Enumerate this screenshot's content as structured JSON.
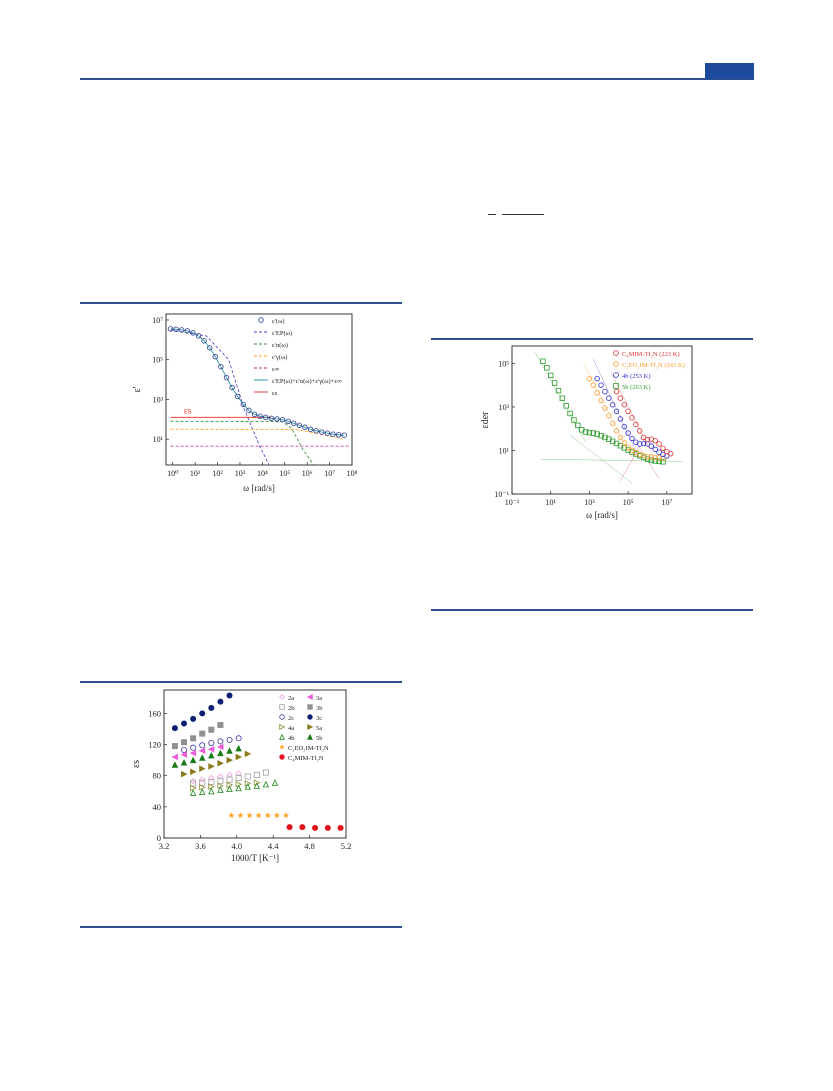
{
  "header": {
    "accent_color": "#1d4a9a"
  },
  "figure_a": {
    "chart_data": {
      "type": "line",
      "title": "",
      "xlabel": "ω [rad/s]",
      "ylabel": "ε'",
      "x_scale": "log",
      "y_scale": "log",
      "xlim_exp": [
        -0.3,
        8
      ],
      "ylim_exp": [
        -0.3,
        7.3
      ],
      "x_ticks": [
        "10⁰",
        "10¹",
        "10²",
        "10³",
        "10⁴",
        "10⁵",
        "10⁶",
        "10⁷",
        "10⁸"
      ],
      "y_ticks": [
        "10¹",
        "10³",
        "10⁵",
        "10⁷"
      ],
      "annotation": "εs",
      "legend": [
        {
          "label": "ε'(ω)",
          "color": "#2b3a8c",
          "style": "circle"
        },
        {
          "label": "ε'EP(ω)",
          "color": "#3b3bd6",
          "style": "dash"
        },
        {
          "label": "ε'α(ω)",
          "color": "#2f8a2f",
          "style": "dash"
        },
        {
          "label": "ε'γ(ω)",
          "color": "#ff9b1a",
          "style": "dash"
        },
        {
          "label": "ε∞",
          "color": "#c21f8c",
          "style": "dash"
        },
        {
          "label": "ε'EP(ω)+ε'α(ω)+ε'γ(ω)+ε∞",
          "color": "#1f8fa8",
          "style": "solid"
        },
        {
          "label": "εs",
          "color": "#e8261c",
          "style": "solid"
        }
      ],
      "series": [
        {
          "name": "ε'(ω)",
          "log_x": [
            -0.1,
            0.15,
            0.4,
            0.65,
            0.9,
            1.15,
            1.4,
            1.65,
            1.9,
            2.15,
            2.4,
            2.65,
            2.9,
            3.15,
            3.4,
            3.65,
            3.9,
            4.15,
            4.4,
            4.65,
            4.9,
            5.15,
            5.4,
            5.65,
            5.9,
            6.15,
            6.4,
            6.65,
            6.9,
            7.15,
            7.4,
            7.65
          ],
          "log_y": [
            6.55,
            6.53,
            6.5,
            6.45,
            6.35,
            6.2,
            5.95,
            5.6,
            5.15,
            4.65,
            4.1,
            3.6,
            3.15,
            2.75,
            2.45,
            2.25,
            2.15,
            2.1,
            2.05,
            2.02,
            1.98,
            1.9,
            1.8,
            1.7,
            1.6,
            1.5,
            1.42,
            1.36,
            1.3,
            1.25,
            1.22,
            1.2
          ]
        },
        {
          "name": "εs",
          "value_log": 2.1
        }
      ]
    }
  },
  "figure_b": {
    "chart_data": {
      "type": "scatter",
      "title": "",
      "xlabel": "1000/T [K⁻¹]",
      "ylabel": "εs",
      "xlim": [
        3.2,
        5.2
      ],
      "ylim": [
        0,
        190
      ],
      "x_ticks": [
        "3.2",
        "3.6",
        "4.0",
        "4.4",
        "4.8",
        "5.2"
      ],
      "y_ticks": [
        "0",
        "40",
        "80",
        "120",
        "160"
      ],
      "legend": [
        {
          "label": "2a",
          "color": "#f0a0e8",
          "marker": "open-diamond"
        },
        {
          "label": "3a",
          "color": "#ee5cd8",
          "marker": "left-tri"
        },
        {
          "label": "2b",
          "color": "#a0a0a0",
          "marker": "open-square"
        },
        {
          "label": "3b",
          "color": "#909090",
          "marker": "square"
        },
        {
          "label": "2c",
          "color": "#3a3aa8",
          "marker": "open-circle"
        },
        {
          "label": "3c",
          "color": "#0c1f73",
          "marker": "circle"
        },
        {
          "label": "4a",
          "color": "#8a8a2a",
          "marker": "open-right-tri"
        },
        {
          "label": "5a",
          "color": "#8a7a1a",
          "marker": "right-tri"
        },
        {
          "label": "4b",
          "color": "#1e8a1e",
          "marker": "open-up-tri"
        },
        {
          "label": "5b",
          "color": "#177a17",
          "marker": "up-tri"
        },
        {
          "label": "C₂EO₂IM-Tf₂N",
          "color": "#ffa020",
          "marker": "star"
        },
        {
          "label": "C₄MIM-Tf₂N",
          "color": "#e8101a",
          "marker": "circle"
        }
      ],
      "series": [
        {
          "name": "3c",
          "x": [
            3.32,
            3.42,
            3.52,
            3.62,
            3.72,
            3.82,
            3.92
          ],
          "y": [
            141,
            147,
            153,
            160,
            167,
            175,
            183
          ]
        },
        {
          "name": "3b",
          "x": [
            3.32,
            3.42,
            3.52,
            3.62,
            3.72,
            3.82
          ],
          "y": [
            118,
            123,
            128,
            134,
            139,
            145
          ]
        },
        {
          "name": "2c",
          "x": [
            3.42,
            3.52,
            3.62,
            3.72,
            3.82,
            3.92,
            4.02
          ],
          "y": [
            113,
            116,
            119,
            122,
            124,
            126,
            128
          ]
        },
        {
          "name": "3a",
          "x": [
            3.32,
            3.42,
            3.52,
            3.62,
            3.72,
            3.82
          ],
          "y": [
            104,
            107,
            109,
            112,
            114,
            117
          ]
        },
        {
          "name": "5b",
          "x": [
            3.32,
            3.42,
            3.52,
            3.62,
            3.72,
            3.82,
            3.92,
            4.02
          ],
          "y": [
            94,
            97,
            100,
            103,
            106,
            109,
            112,
            115
          ]
        },
        {
          "name": "5a",
          "x": [
            3.42,
            3.52,
            3.62,
            3.72,
            3.82,
            3.92,
            4.02,
            4.12
          ],
          "y": [
            82,
            85,
            89,
            92,
            96,
            100,
            104,
            108
          ]
        },
        {
          "name": "2a",
          "x": [
            3.52,
            3.62,
            3.72,
            3.82,
            3.92,
            4.02
          ],
          "y": [
            73,
            75,
            77,
            79,
            81,
            83
          ]
        },
        {
          "name": "2b",
          "x": [
            3.52,
            3.62,
            3.72,
            3.82,
            3.92,
            4.02,
            4.12,
            4.22,
            4.32
          ],
          "y": [
            70,
            71,
            72,
            73,
            75,
            77,
            79,
            81,
            84
          ]
        },
        {
          "name": "4a",
          "x": [
            3.52,
            3.62,
            3.72,
            3.82,
            3.92,
            4.02,
            4.12,
            4.22
          ],
          "y": [
            64,
            65,
            66,
            67,
            68,
            69,
            70,
            71
          ]
        },
        {
          "name": "4b",
          "x": [
            3.52,
            3.62,
            3.72,
            3.82,
            3.92,
            4.02,
            4.12,
            4.22,
            4.32,
            4.42
          ],
          "y": [
            58,
            59,
            60,
            62,
            63,
            64,
            66,
            67,
            69,
            71
          ]
        },
        {
          "name": "C₂EO₂IM-Tf₂N",
          "x": [
            3.94,
            4.04,
            4.14,
            4.24,
            4.34,
            4.44,
            4.54
          ],
          "y": [
            29,
            29,
            29,
            29,
            29,
            29,
            29
          ]
        },
        {
          "name": "C₄MIM-Tf₂N",
          "x": [
            4.58,
            4.72,
            4.86,
            5.0,
            5.14,
            5.28
          ],
          "y": [
            14,
            14,
            13,
            13,
            13,
            13
          ]
        }
      ]
    }
  },
  "figure_c": {
    "chart_data": {
      "type": "scatter",
      "title": "",
      "xlabel": "ω [rad/s]",
      "ylabel": "εder",
      "x_scale": "log",
      "y_scale": "log",
      "xlim_exp": [
        -1,
        8.3
      ],
      "ylim_exp": [
        -1,
        5.8
      ],
      "x_ticks": [
        "10⁻¹",
        "10¹",
        "10³",
        "10⁵",
        "10⁷"
      ],
      "y_ticks": [
        "10⁻¹",
        "10¹",
        "10³",
        "10⁵"
      ],
      "legend": [
        {
          "label": "C₄MIM-Tf₂N (223 K)",
          "color": "#e03030",
          "marker": "open-circle"
        },
        {
          "label": "C₂EO₂IM-Tf₂N (243 K)",
          "color": "#ff9a2a",
          "marker": "open-circle"
        },
        {
          "label": "4b (253 K)",
          "color": "#2f2fd0",
          "marker": "open-circle"
        },
        {
          "label": "5b (263 K)",
          "color": "#2b9a2b",
          "marker": "open-square"
        }
      ],
      "series": [
        {
          "name": "5b (263 K)",
          "log_x": [
            0.6,
            0.8,
            1.0,
            1.2,
            1.4,
            1.6,
            1.8,
            2.0,
            2.2,
            2.4,
            2.6,
            2.8,
            3.0,
            3.2,
            3.4,
            3.6,
            3.8,
            4.0,
            4.2,
            4.4,
            4.6,
            4.8,
            5.0,
            5.2,
            5.4,
            5.6,
            5.8,
            6.0,
            6.2,
            6.4,
            6.6,
            6.8
          ],
          "log_y": [
            5.1,
            4.8,
            4.45,
            4.1,
            3.75,
            3.4,
            3.05,
            2.7,
            2.4,
            2.15,
            1.95,
            1.85,
            1.82,
            1.8,
            1.75,
            1.68,
            1.6,
            1.52,
            1.42,
            1.32,
            1.22,
            1.12,
            1.02,
            0.92,
            0.84,
            0.76,
            0.68,
            0.6,
            0.55,
            0.52,
            0.5,
            0.48
          ]
        },
        {
          "name": "C₂EO₂IM-Tf₂N (243 K)",
          "log_x": [
            3.0,
            3.2,
            3.4,
            3.6,
            3.8,
            4.0,
            4.2,
            4.4,
            4.6,
            4.8,
            5.0,
            5.2,
            5.4,
            5.6,
            5.8,
            6.0,
            6.2,
            6.4,
            6.6,
            6.8
          ],
          "log_y": [
            4.3,
            4.0,
            3.65,
            3.3,
            2.95,
            2.6,
            2.25,
            1.9,
            1.6,
            1.35,
            1.15,
            1.0,
            0.9,
            0.82,
            0.76,
            0.72,
            0.7,
            0.68,
            0.66,
            0.64
          ]
        },
        {
          "name": "4b (253 K)",
          "log_x": [
            3.4,
            3.6,
            3.8,
            4.0,
            4.2,
            4.4,
            4.6,
            4.8,
            5.0,
            5.2,
            5.4,
            5.6,
            5.8,
            6.0,
            6.2,
            6.4,
            6.6,
            6.8,
            7.0
          ],
          "log_y": [
            4.3,
            4.0,
            3.7,
            3.4,
            3.1,
            2.8,
            2.45,
            2.1,
            1.8,
            1.55,
            1.38,
            1.3,
            1.32,
            1.3,
            1.2,
            1.05,
            0.92,
            0.82,
            0.75
          ]
        },
        {
          "name": "C₄MIM-Tf₂N (223 K)",
          "log_x": [
            4.4,
            4.6,
            4.8,
            5.0,
            5.2,
            5.4,
            5.6,
            5.8,
            6.0,
            6.2,
            6.4,
            6.6,
            6.8,
            7.0,
            7.2
          ],
          "log_y": [
            3.7,
            3.4,
            3.1,
            2.8,
            2.5,
            2.2,
            1.9,
            1.6,
            1.5,
            1.52,
            1.45,
            1.3,
            1.1,
            0.95,
            0.85
          ]
        }
      ]
    }
  }
}
